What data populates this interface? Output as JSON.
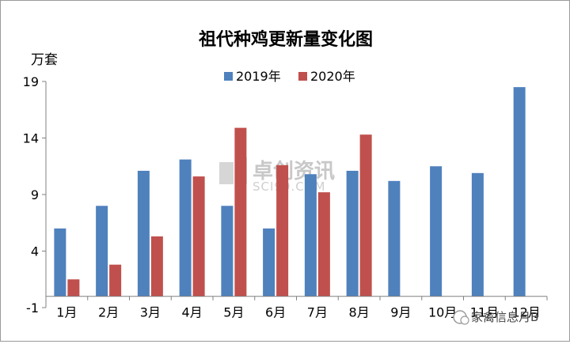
{
  "chart_data": {
    "type": "bar",
    "title": "祖代种鸡更新量变化图",
    "unit_label": "万套",
    "categories": [
      "1月",
      "2月",
      "3月",
      "4月",
      "5月",
      "6月",
      "7月",
      "8月",
      "9月",
      "10月",
      "11月",
      "12月"
    ],
    "series": [
      {
        "name": "2019年",
        "color": "#4f81bd",
        "values": [
          6.0,
          8.0,
          11.1,
          12.1,
          8.0,
          6.0,
          10.8,
          11.1,
          10.2,
          11.5,
          10.9,
          18.5
        ]
      },
      {
        "name": "2020年",
        "color": "#c0504d",
        "values": [
          1.5,
          2.8,
          5.3,
          10.6,
          14.9,
          11.6,
          9.2,
          14.3,
          null,
          null,
          null,
          null
        ]
      }
    ],
    "ylim": [
      -1,
      19
    ],
    "yticks": [
      -1,
      4,
      9,
      14,
      19
    ],
    "ytick_labels": [
      "-1",
      "4",
      "9",
      "14",
      "19"
    ],
    "grid": false,
    "legend_position": "top-center"
  },
  "watermark": {
    "text": "卓创资讯",
    "sub": "SCI99.COM"
  },
  "badge": {
    "text": "家禽信息月B"
  }
}
